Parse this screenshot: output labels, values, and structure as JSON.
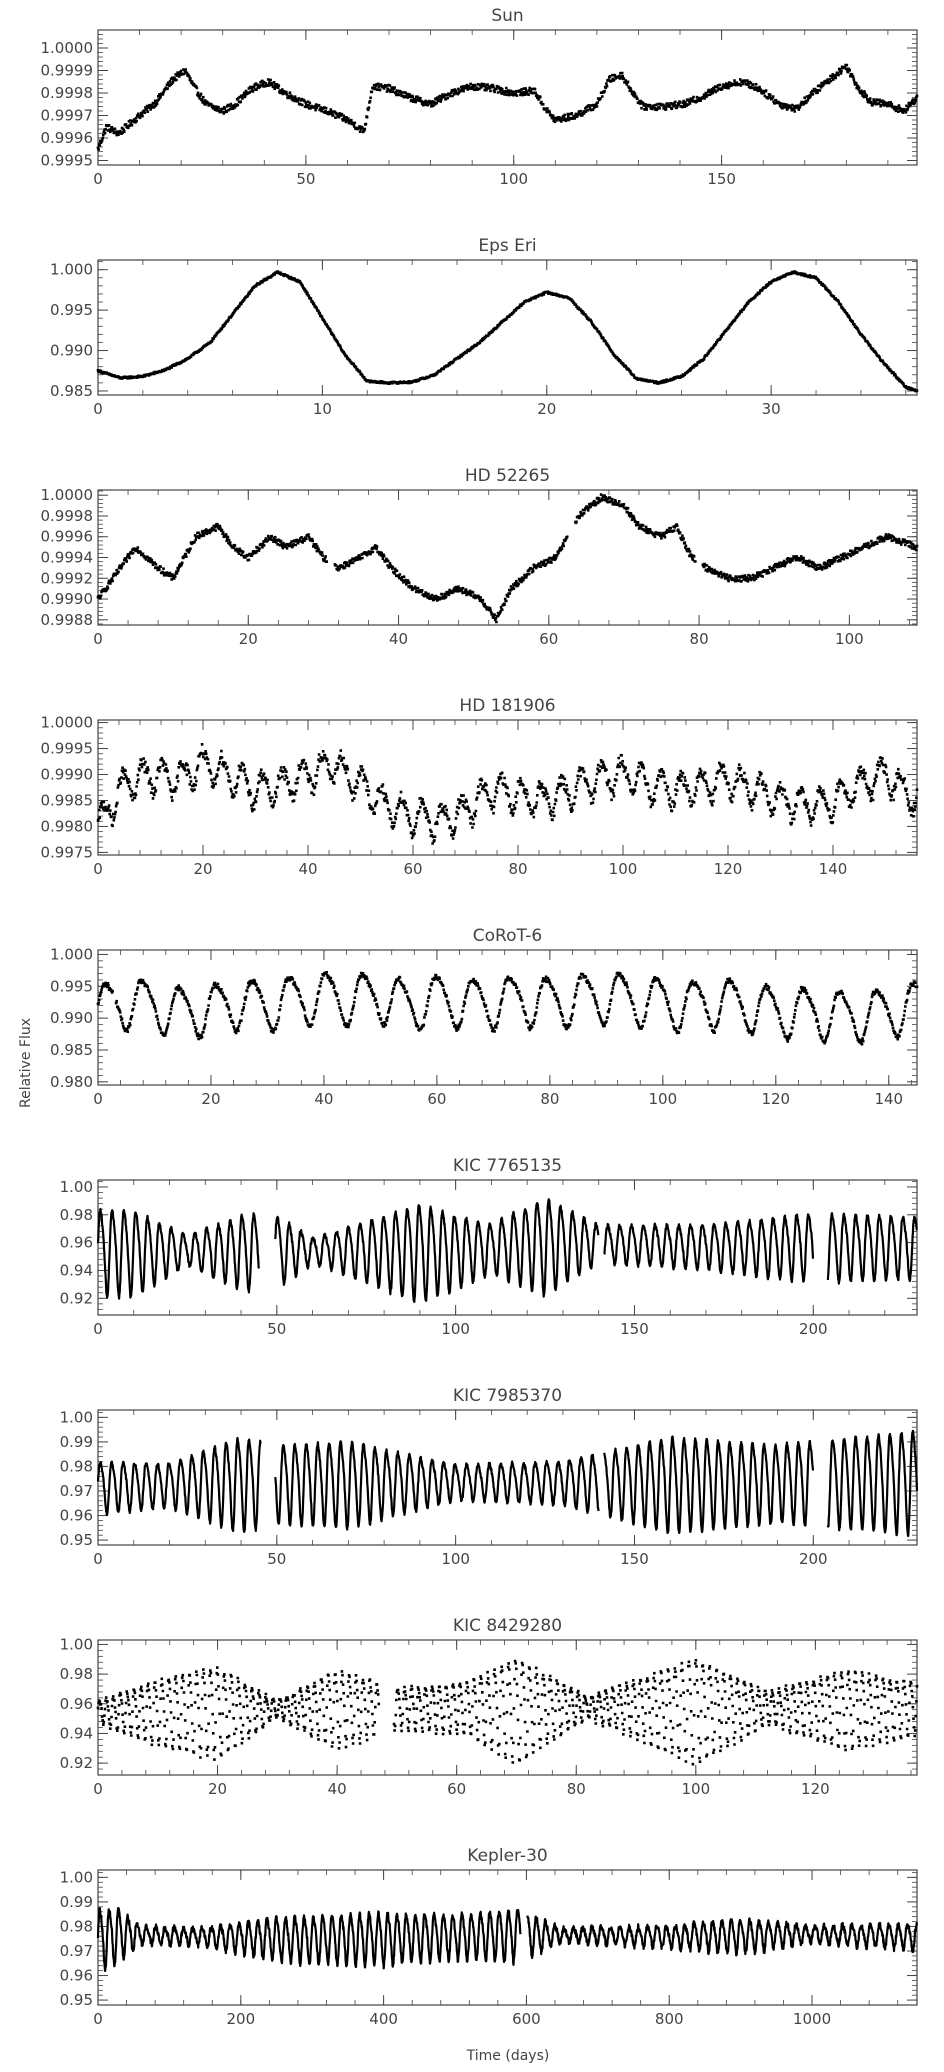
{
  "figure": {
    "ylabel": "Relative Flux",
    "xlabel": "Time (days)"
  },
  "chart_data": [
    {
      "type": "scatter",
      "title": "Sun",
      "xlim": [
        0,
        197
      ],
      "ylim": [
        0.99948,
        1.00008
      ],
      "xticks": [
        0,
        50,
        100,
        150
      ],
      "yticks": [
        "0.9995",
        "0.9996",
        "0.9997",
        "0.9998",
        "0.9999",
        "1.0000"
      ],
      "anchors": [
        [
          0,
          0.99955
        ],
        [
          2,
          0.99965
        ],
        [
          5,
          0.99962
        ],
        [
          10,
          0.9997
        ],
        [
          14,
          0.99976
        ],
        [
          18,
          0.99986
        ],
        [
          21,
          0.9999
        ],
        [
          23,
          0.99983
        ],
        [
          26,
          0.99975
        ],
        [
          30,
          0.99972
        ],
        [
          33,
          0.99975
        ],
        [
          37,
          0.99982
        ],
        [
          41,
          0.99985
        ],
        [
          45,
          0.9998
        ],
        [
          50,
          0.99975
        ],
        [
          55,
          0.99972
        ],
        [
          60,
          0.99968
        ],
        [
          64,
          0.99963
        ],
        [
          66,
          0.99983
        ],
        [
          70,
          0.99982
        ],
        [
          75,
          0.99978
        ],
        [
          80,
          0.99975
        ],
        [
          85,
          0.9998
        ],
        [
          90,
          0.99983
        ],
        [
          95,
          0.99982
        ],
        [
          100,
          0.9998
        ],
        [
          105,
          0.99981
        ],
        [
          108,
          0.99972
        ],
        [
          110,
          0.99968
        ],
        [
          115,
          0.9997
        ],
        [
          120,
          0.99975
        ],
        [
          123,
          0.99986
        ],
        [
          126,
          0.99988
        ],
        [
          128,
          0.99982
        ],
        [
          131,
          0.99974
        ],
        [
          136,
          0.99974
        ],
        [
          141,
          0.99975
        ],
        [
          145,
          0.99978
        ],
        [
          150,
          0.99983
        ],
        [
          155,
          0.99985
        ],
        [
          159,
          0.99982
        ],
        [
          164,
          0.99975
        ],
        [
          168,
          0.99973
        ],
        [
          172,
          0.9998
        ],
        [
          176,
          0.99986
        ],
        [
          180,
          0.99992
        ],
        [
          183,
          0.99982
        ],
        [
          186,
          0.99976
        ],
        [
          190,
          0.99975
        ],
        [
          194,
          0.99972
        ],
        [
          197,
          0.99978
        ]
      ],
      "noise": 1.5e-05,
      "gaps": [],
      "mode": "dots"
    },
    {
      "type": "scatter",
      "title": "Eps Eri",
      "xlim": [
        0,
        36.5
      ],
      "ylim": [
        0.9845,
        1.0012
      ],
      "xticks": [
        0,
        10,
        20,
        30
      ],
      "yticks": [
        "0.985",
        "0.990",
        "0.995",
        "1.000"
      ],
      "anchors": [
        [
          0,
          0.9875
        ],
        [
          1,
          0.9866
        ],
        [
          2,
          0.9868
        ],
        [
          3,
          0.9876
        ],
        [
          4,
          0.989
        ],
        [
          5,
          0.991
        ],
        [
          6,
          0.9945
        ],
        [
          7,
          0.998
        ],
        [
          8,
          0.9997
        ],
        [
          9,
          0.9985
        ],
        [
          10,
          0.994
        ],
        [
          11,
          0.9895
        ],
        [
          12,
          0.9862
        ],
        [
          13,
          0.986
        ],
        [
          14,
          0.9861
        ],
        [
          15,
          0.987
        ],
        [
          16,
          0.989
        ],
        [
          17,
          0.991
        ],
        [
          18,
          0.9935
        ],
        [
          19,
          0.996
        ],
        [
          20,
          0.9972
        ],
        [
          21,
          0.9965
        ],
        [
          22,
          0.9935
        ],
        [
          23,
          0.9895
        ],
        [
          24,
          0.9865
        ],
        [
          25,
          0.986
        ],
        [
          26,
          0.9868
        ],
        [
          27,
          0.989
        ],
        [
          28,
          0.9925
        ],
        [
          29,
          0.996
        ],
        [
          30,
          0.9985
        ],
        [
          31,
          0.9997
        ],
        [
          32,
          0.999
        ],
        [
          33,
          0.996
        ],
        [
          34,
          0.992
        ],
        [
          35,
          0.9885
        ],
        [
          36,
          0.9855
        ],
        [
          36.5,
          0.985
        ]
      ],
      "noise": 0.00012,
      "gaps": [],
      "mode": "dots"
    },
    {
      "type": "scatter",
      "title": "HD 52265",
      "xlim": [
        0,
        109
      ],
      "ylim": [
        0.99875,
        1.00005
      ],
      "xticks": [
        0,
        20,
        40,
        60,
        80,
        100
      ],
      "yticks": [
        "0.9988",
        "0.9990",
        "0.9992",
        "0.9994",
        "0.9996",
        "0.9998",
        "1.0000"
      ],
      "anchors": [
        [
          0,
          0.999
        ],
        [
          2,
          0.9992
        ],
        [
          5,
          0.9995
        ],
        [
          8,
          0.9993
        ],
        [
          10,
          0.9992
        ],
        [
          13,
          0.9996
        ],
        [
          16,
          0.9997
        ],
        [
          18,
          0.9995
        ],
        [
          20,
          0.9994
        ],
        [
          23,
          0.9996
        ],
        [
          25,
          0.9995
        ],
        [
          28,
          0.9996
        ],
        [
          30,
          0.9994
        ],
        [
          32,
          0.9993
        ],
        [
          35,
          0.9994
        ],
        [
          37,
          0.9995
        ],
        [
          39,
          0.9993
        ],
        [
          42,
          0.9991
        ],
        [
          45,
          0.999
        ],
        [
          48,
          0.9991
        ],
        [
          51,
          0.999
        ],
        [
          53,
          0.9988
        ],
        [
          55,
          0.9991
        ],
        [
          58,
          0.9993
        ],
        [
          61,
          0.9994
        ],
        [
          64,
          0.9998
        ],
        [
          67,
          0.99998
        ],
        [
          70,
          0.9999
        ],
        [
          72,
          0.9997
        ],
        [
          75,
          0.9996
        ],
        [
          77,
          0.9997
        ],
        [
          79,
          0.9994
        ],
        [
          81,
          0.9993
        ],
        [
          84,
          0.9992
        ],
        [
          87,
          0.9992
        ],
        [
          90,
          0.9993
        ],
        [
          93,
          0.9994
        ],
        [
          96,
          0.9993
        ],
        [
          99,
          0.9994
        ],
        [
          102,
          0.9995
        ],
        [
          105,
          0.9996
        ],
        [
          109,
          0.9995
        ]
      ],
      "noise": 3e-05,
      "gaps": [
        [
          30.5,
          31.5
        ],
        [
          62.5,
          63.5
        ],
        [
          79.5,
          80.5
        ]
      ],
      "mode": "dots"
    },
    {
      "type": "scatter",
      "title": "HD 181906",
      "xlim": [
        0,
        156
      ],
      "ylim": [
        0.99745,
        1.00005
      ],
      "xticks": [
        0,
        20,
        40,
        60,
        80,
        100,
        120,
        140
      ],
      "yticks": [
        "0.9975",
        "0.9980",
        "0.9985",
        "0.9990",
        "0.9995",
        "1.0000"
      ],
      "anchors": [
        [
          0,
          0.998
        ],
        [
          5,
          0.9988
        ],
        [
          10,
          0.999
        ],
        [
          15,
          0.9989
        ],
        [
          20,
          0.9992
        ],
        [
          25,
          0.999
        ],
        [
          30,
          0.9987
        ],
        [
          35,
          0.9988
        ],
        [
          40,
          0.999
        ],
        [
          45,
          0.9992
        ],
        [
          50,
          0.9988
        ],
        [
          55,
          0.9984
        ],
        [
          60,
          0.9982
        ],
        [
          65,
          0.9981
        ],
        [
          70,
          0.9983
        ],
        [
          75,
          0.9987
        ],
        [
          80,
          0.9986
        ],
        [
          85,
          0.9985
        ],
        [
          90,
          0.9987
        ],
        [
          95,
          0.9989
        ],
        [
          100,
          0.999
        ],
        [
          105,
          0.9988
        ],
        [
          110,
          0.9987
        ],
        [
          115,
          0.9988
        ],
        [
          120,
          0.9989
        ],
        [
          125,
          0.9987
        ],
        [
          130,
          0.9985
        ],
        [
          135,
          0.9984
        ],
        [
          140,
          0.9985
        ],
        [
          145,
          0.9988
        ],
        [
          150,
          0.999
        ],
        [
          156,
          0.9985
        ]
      ],
      "wave": {
        "period": 3.8,
        "amp": 0.00035
      },
      "noise": 0.00012,
      "gaps": [],
      "mode": "dots"
    },
    {
      "type": "scatter",
      "title": "CoRoT-6",
      "xlim": [
        0,
        145
      ],
      "ylim": [
        0.9795,
        1.0007
      ],
      "xticks": [
        0,
        20,
        40,
        60,
        80,
        100,
        120,
        140
      ],
      "yticks": [
        "0.980",
        "0.985",
        "0.990",
        "0.995",
        "1.000"
      ],
      "anchors": [
        [
          0,
          0.9915
        ],
        [
          5,
          0.9925
        ],
        [
          10,
          0.992
        ],
        [
          15,
          0.991
        ],
        [
          20,
          0.9915
        ],
        [
          25,
          0.9925
        ],
        [
          30,
          0.992
        ],
        [
          35,
          0.993
        ],
        [
          40,
          0.9935
        ],
        [
          45,
          0.993
        ],
        [
          50,
          0.9935
        ],
        [
          55,
          0.992
        ],
        [
          60,
          0.993
        ],
        [
          65,
          0.9925
        ],
        [
          70,
          0.9925
        ],
        [
          75,
          0.993
        ],
        [
          80,
          0.9925
        ],
        [
          85,
          0.993
        ],
        [
          90,
          0.9935
        ],
        [
          95,
          0.993
        ],
        [
          100,
          0.9925
        ],
        [
          105,
          0.992
        ],
        [
          110,
          0.9925
        ],
        [
          115,
          0.992
        ],
        [
          120,
          0.991
        ],
        [
          125,
          0.991
        ],
        [
          130,
          0.9905
        ],
        [
          135,
          0.9905
        ],
        [
          140,
          0.991
        ],
        [
          145,
          0.992
        ]
      ],
      "wave": {
        "period": 6.5,
        "amp": 0.0045
      },
      "noise": 0.0004,
      "gaps": [
        [
          2.6,
          3.2
        ]
      ],
      "mode": "dots"
    },
    {
      "type": "line",
      "title": "KIC 7765135",
      "xlim": [
        0,
        229
      ],
      "ylim": [
        0.908,
        1.005
      ],
      "xticks": [
        0,
        50,
        100,
        150,
        200
      ],
      "yticks": [
        "0.92",
        "0.94",
        "0.96",
        "0.98",
        "1.00"
      ],
      "anchors": [
        [
          0,
          0.955
        ],
        [
          20,
          0.955
        ],
        [
          45,
          0.955
        ],
        [
          50,
          0.955
        ],
        [
          80,
          0.955
        ],
        [
          100,
          0.955
        ],
        [
          125,
          0.96
        ],
        [
          140,
          0.96
        ],
        [
          170,
          0.958
        ],
        [
          200,
          0.958
        ],
        [
          229,
          0.958
        ]
      ],
      "envelope": [
        [
          0,
          0.035
        ],
        [
          10,
          0.035
        ],
        [
          25,
          0.012
        ],
        [
          40,
          0.03
        ],
        [
          45,
          0.032
        ],
        [
          50,
          0.03
        ],
        [
          60,
          0.01
        ],
        [
          75,
          0.025
        ],
        [
          90,
          0.04
        ],
        [
          110,
          0.02
        ],
        [
          125,
          0.04
        ],
        [
          140,
          0.015
        ],
        [
          170,
          0.018
        ],
        [
          200,
          0.028
        ],
        [
          229,
          0.025
        ]
      ],
      "wave": {
        "period": 3.3
      },
      "noise": 0.0015,
      "gaps": [
        [
          45,
          49.5
        ],
        [
          140,
          141.5
        ],
        [
          200,
          204
        ]
      ],
      "mode": "line"
    },
    {
      "type": "line",
      "title": "KIC 7985370",
      "xlim": [
        0,
        229
      ],
      "ylim": [
        0.948,
        1.003
      ],
      "xticks": [
        0,
        50,
        100,
        150,
        200
      ],
      "yticks": [
        "0.95",
        "0.96",
        "0.97",
        "0.98",
        "0.99",
        "1.00"
      ],
      "anchors": [
        [
          0,
          0.972
        ],
        [
          40,
          0.974
        ],
        [
          60,
          0.974
        ],
        [
          100,
          0.974
        ],
        [
          140,
          0.974
        ],
        [
          180,
          0.974
        ],
        [
          229,
          0.975
        ]
      ],
      "envelope": [
        [
          0,
          0.012
        ],
        [
          20,
          0.01
        ],
        [
          40,
          0.022
        ],
        [
          50,
          0.018
        ],
        [
          70,
          0.02
        ],
        [
          100,
          0.008
        ],
        [
          130,
          0.01
        ],
        [
          160,
          0.022
        ],
        [
          190,
          0.018
        ],
        [
          229,
          0.024
        ]
      ],
      "wave": {
        "period": 3.2
      },
      "noise": 0.0008,
      "gaps": [
        [
          45.5,
          49.5
        ],
        [
          140,
          141.5
        ],
        [
          200,
          204
        ]
      ],
      "mode": "line"
    },
    {
      "type": "line",
      "title": "KIC 8429280",
      "xlim": [
        0,
        137
      ],
      "ylim": [
        0.912,
        1.003
      ],
      "xticks": [
        0,
        20,
        40,
        60,
        80,
        100,
        120
      ],
      "yticks": [
        "0.92",
        "0.94",
        "0.96",
        "0.98",
        "1.00"
      ],
      "anchors": [
        [
          0,
          0.955
        ],
        [
          20,
          0.956
        ],
        [
          40,
          0.958
        ],
        [
          60,
          0.958
        ],
        [
          80,
          0.958
        ],
        [
          100,
          0.958
        ],
        [
          137,
          0.958
        ]
      ],
      "envelope": [
        [
          0,
          0.008
        ],
        [
          10,
          0.025
        ],
        [
          20,
          0.035
        ],
        [
          30,
          0.006
        ],
        [
          40,
          0.03
        ],
        [
          50,
          0.015
        ],
        [
          62,
          0.02
        ],
        [
          70,
          0.04
        ],
        [
          82,
          0.008
        ],
        [
          100,
          0.04
        ],
        [
          112,
          0.012
        ],
        [
          125,
          0.03
        ],
        [
          137,
          0.02
        ]
      ],
      "wave": {
        "period": 1.16
      },
      "noise": 0.0015,
      "gaps": [
        [
          47,
          49.5
        ]
      ],
      "mode": "dots"
    },
    {
      "type": "line",
      "title": "Kepler-30",
      "xlim": [
        0,
        1147
      ],
      "ylim": [
        0.948,
        1.003
      ],
      "xticks": [
        0,
        200,
        400,
        600,
        800,
        1000
      ],
      "yticks": [
        "0.95",
        "0.96",
        "0.97",
        "0.98",
        "0.99",
        "1.00"
      ],
      "anchors": [
        [
          0,
          0.975
        ],
        [
          30,
          0.977
        ],
        [
          150,
          0.976
        ],
        [
          300,
          0.975
        ],
        [
          450,
          0.976
        ],
        [
          600,
          0.977
        ],
        [
          800,
          0.976
        ],
        [
          1000,
          0.977
        ],
        [
          1147,
          0.976
        ]
      ],
      "envelope": [
        [
          0,
          0.015
        ],
        [
          30,
          0.012
        ],
        [
          60,
          0.004
        ],
        [
          150,
          0.004
        ],
        [
          250,
          0.01
        ],
        [
          400,
          0.012
        ],
        [
          500,
          0.01
        ],
        [
          590,
          0.012
        ],
        [
          650,
          0.003
        ],
        [
          800,
          0.005
        ],
        [
          900,
          0.008
        ],
        [
          1000,
          0.004
        ],
        [
          1147,
          0.006
        ]
      ],
      "wave": {
        "period": 13
      },
      "noise": 0.0012,
      "gaps": [
        [
          592,
          601
        ]
      ],
      "mode": "line"
    }
  ]
}
